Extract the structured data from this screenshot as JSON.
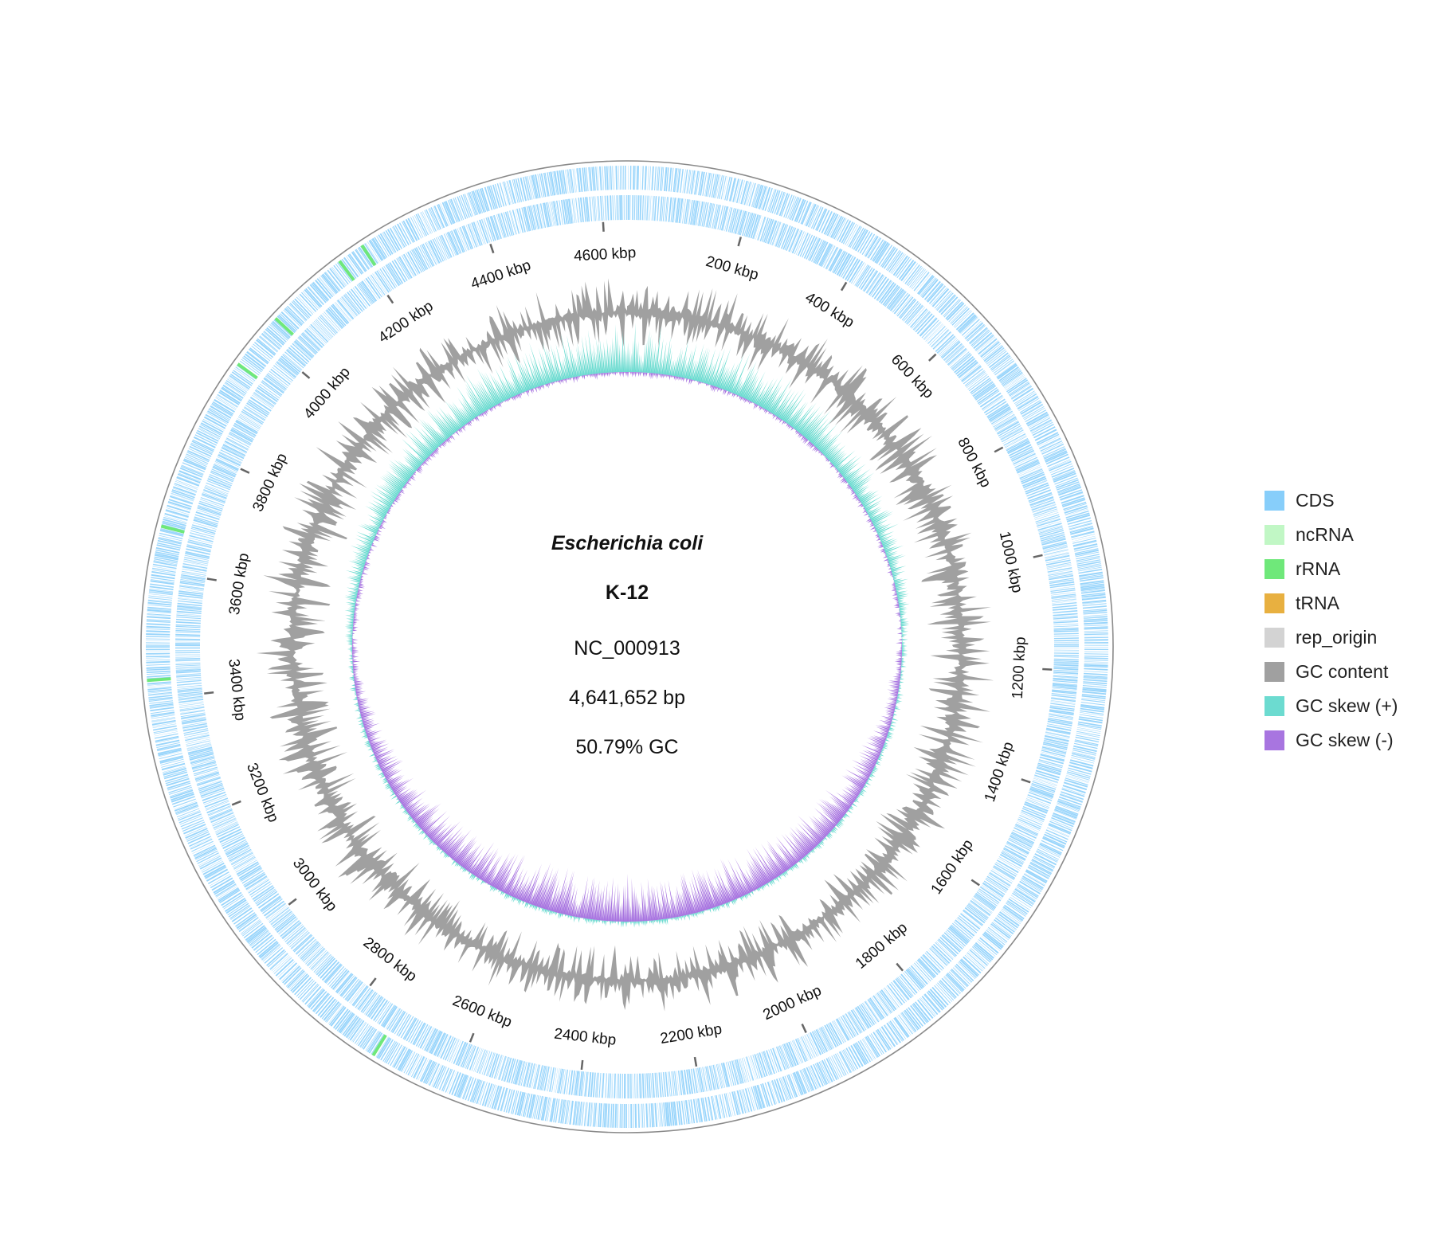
{
  "genome": {
    "organism": "Escherichia coli",
    "strain": "K-12",
    "accession": "NC_000913",
    "length_label": "4,641,652 bp",
    "gc_label": "50.79% GC",
    "length_bp": 4641652
  },
  "ticks": [
    {
      "kbp": 200,
      "label": "200 kbp"
    },
    {
      "kbp": 400,
      "label": "400 kbp"
    },
    {
      "kbp": 600,
      "label": "600 kbp"
    },
    {
      "kbp": 800,
      "label": "800 kbp"
    },
    {
      "kbp": 1000,
      "label": "1000 kbp"
    },
    {
      "kbp": 1200,
      "label": "1200 kbp"
    },
    {
      "kbp": 1400,
      "label": "1400 kbp"
    },
    {
      "kbp": 1600,
      "label": "1600 kbp"
    },
    {
      "kbp": 1800,
      "label": "1800 kbp"
    },
    {
      "kbp": 2000,
      "label": "2000 kbp"
    },
    {
      "kbp": 2200,
      "label": "2200 kbp"
    },
    {
      "kbp": 2400,
      "label": "2400 kbp"
    },
    {
      "kbp": 2600,
      "label": "2600 kbp"
    },
    {
      "kbp": 2800,
      "label": "2800 kbp"
    },
    {
      "kbp": 3000,
      "label": "3000 kbp"
    },
    {
      "kbp": 3200,
      "label": "3200 kbp"
    },
    {
      "kbp": 3400,
      "label": "3400 kbp"
    },
    {
      "kbp": 3600,
      "label": "3600 kbp"
    },
    {
      "kbp": 3800,
      "label": "3800 kbp"
    },
    {
      "kbp": 4000,
      "label": "4000 kbp"
    },
    {
      "kbp": 4200,
      "label": "4200 kbp"
    },
    {
      "kbp": 4400,
      "label": "4400 kbp"
    },
    {
      "kbp": 4600,
      "label": "4600 kbp"
    }
  ],
  "legend": [
    {
      "label": "CDS",
      "color": "#87cefa"
    },
    {
      "label": "ncRNA",
      "color": "#c1f7c5"
    },
    {
      "label": "rRNA",
      "color": "#6fe87a"
    },
    {
      "label": "tRNA",
      "color": "#e8b040"
    },
    {
      "label": "rep_origin",
      "color": "#d3d3d3"
    },
    {
      "label": "GC content",
      "color": "#a0a0a0"
    },
    {
      "label": "GC skew (+)",
      "color": "#6cdbd0"
    },
    {
      "label": "GC skew (-)",
      "color": "#a875e0"
    }
  ],
  "rrna_kbp": [
    3427,
    3666,
    3943,
    4034,
    4166,
    4208,
    2729
  ]
}
